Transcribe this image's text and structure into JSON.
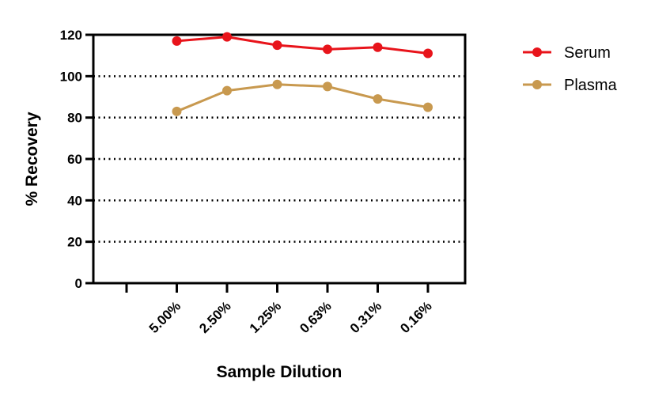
{
  "chart_data": {
    "type": "line",
    "title": "",
    "xlabel": "Sample Dilution",
    "ylabel": "% Recovery",
    "categories": [
      "",
      "5.00%",
      "2.50%",
      "1.25%",
      "0.63%",
      "0.31%",
      "0.16%"
    ],
    "ylim": [
      0,
      120
    ],
    "yticks": [
      0,
      20,
      40,
      60,
      80,
      100,
      120
    ],
    "grid": "horizontal dotted at 20, 40, 60, 80, 100",
    "legend_position": "top-right",
    "series": [
      {
        "name": "Serum",
        "color": "#e8141b",
        "values": [
          null,
          117,
          119,
          115,
          113,
          114,
          111
        ]
      },
      {
        "name": "Plasma",
        "color": "#c8994f",
        "values": [
          null,
          83,
          93,
          96,
          95,
          89,
          85
        ]
      }
    ]
  }
}
